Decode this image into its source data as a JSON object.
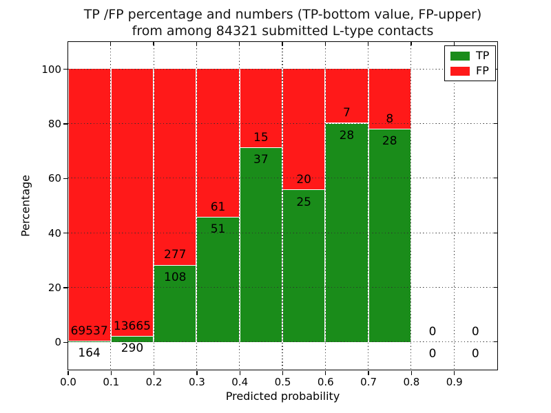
{
  "figure": {
    "title_line1": "TP /FP percentage and numbers (TP-bottom value, FP-upper)",
    "title_line2": "from among 84321 submitted L-type contacts",
    "xlabel": "Predicted probability",
    "ylabel": "Percentage"
  },
  "chart_data": {
    "type": "bar",
    "stacked": true,
    "title": "TP /FP percentage and numbers (TP-bottom value, FP-upper)\nfrom among 84321 submitted L-type contacts",
    "xlabel": "Predicted probability",
    "ylabel": "Percentage",
    "xlim": [
      0.0,
      1.0
    ],
    "ylim": [
      -10,
      110
    ],
    "grid": true,
    "grid_style": "dotted",
    "legend_position": "upper right",
    "bin_width": 0.1,
    "xticks": [
      "0.0",
      "0.1",
      "0.2",
      "0.3",
      "0.4",
      "0.5",
      "0.6",
      "0.7",
      "0.8",
      "0.9"
    ],
    "yticks": [
      "0",
      "20",
      "40",
      "60",
      "80",
      "100"
    ],
    "colors": {
      "tp": "#1a8c1a",
      "fp": "#ff1919",
      "bar_edge": "#ffffff"
    },
    "legend": [
      {
        "label": "TP",
        "color": "#1a8c1a"
      },
      {
        "label": "FP",
        "color": "#ff1919"
      }
    ],
    "bins": [
      {
        "x_start": 0.0,
        "x_end": 0.1,
        "tp_count": 164,
        "fp_count": 69537,
        "tp_pct": 0.24,
        "fp_pct": 99.76
      },
      {
        "x_start": 0.1,
        "x_end": 0.2,
        "tp_count": 290,
        "fp_count": 13665,
        "tp_pct": 2.08,
        "fp_pct": 97.92
      },
      {
        "x_start": 0.2,
        "x_end": 0.3,
        "tp_count": 108,
        "fp_count": 277,
        "tp_pct": 28.05,
        "fp_pct": 71.95
      },
      {
        "x_start": 0.3,
        "x_end": 0.4,
        "tp_count": 51,
        "fp_count": 61,
        "tp_pct": 45.54,
        "fp_pct": 54.46
      },
      {
        "x_start": 0.4,
        "x_end": 0.5,
        "tp_count": 37,
        "fp_count": 15,
        "tp_pct": 71.15,
        "fp_pct": 28.85
      },
      {
        "x_start": 0.5,
        "x_end": 0.6,
        "tp_count": 25,
        "fp_count": 20,
        "tp_pct": 55.56,
        "fp_pct": 44.44
      },
      {
        "x_start": 0.6,
        "x_end": 0.7,
        "tp_count": 28,
        "fp_count": 7,
        "tp_pct": 80.0,
        "fp_pct": 20.0
      },
      {
        "x_start": 0.7,
        "x_end": 0.8,
        "tp_count": 28,
        "fp_count": 8,
        "tp_pct": 77.78,
        "fp_pct": 22.22
      },
      {
        "x_start": 0.8,
        "x_end": 0.9,
        "tp_count": 0,
        "fp_count": 0,
        "tp_pct": 0,
        "fp_pct": 0
      },
      {
        "x_start": 0.9,
        "x_end": 1.0,
        "tp_count": 0,
        "fp_count": 0,
        "tp_pct": 0,
        "fp_pct": 0
      }
    ]
  }
}
